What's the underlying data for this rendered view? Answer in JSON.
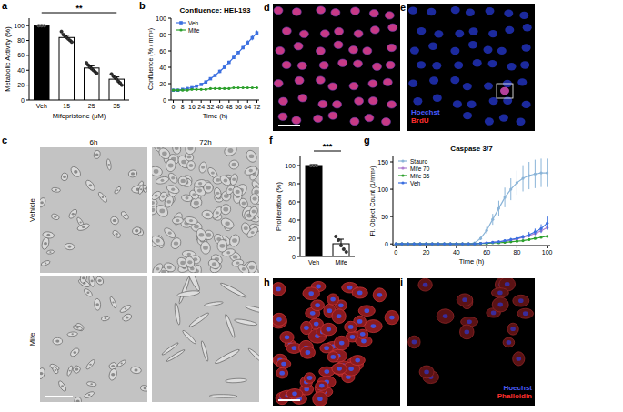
{
  "panel_labels": [
    "a",
    "b",
    "c",
    "d",
    "e",
    "f",
    "g",
    "h",
    "i"
  ],
  "chart_data": [
    {
      "type": "bar",
      "categories": [
        "Veh",
        "15",
        "25",
        "35"
      ],
      "values": [
        100,
        84,
        43,
        28
      ],
      "errors": [
        1,
        3,
        3,
        3
      ],
      "points": [
        [
          100,
          100,
          100
        ],
        [
          92,
          88,
          86,
          84,
          82,
          80,
          78
        ],
        [
          50,
          47,
          44,
          42,
          40,
          38,
          36
        ],
        [
          35,
          32,
          30,
          28,
          25,
          23,
          20
        ]
      ],
      "colors": [
        "#000000",
        "#ffffff",
        "#ffffff",
        "#ffffff"
      ],
      "ylim": [
        0,
        110
      ],
      "yticks": [
        0,
        20,
        40,
        60,
        80,
        100
      ],
      "y_label": "Metabolic Activity (%)",
      "x_label": "Mifepristone (μM)",
      "annotations": [
        "**"
      ]
    },
    {
      "type": "line",
      "title": "Confluence: HEI-193",
      "x": [
        0,
        4,
        8,
        12,
        16,
        20,
        24,
        28,
        32,
        36,
        40,
        44,
        48,
        52,
        56,
        60,
        64,
        68,
        72
      ],
      "series": [
        {
          "name": "Veh",
          "color": "#3b6fe0",
          "marker": "square",
          "values": [
            12,
            12,
            13,
            14,
            15,
            17,
            19,
            22,
            26,
            30,
            35,
            40,
            46,
            52,
            58,
            64,
            70,
            76,
            82
          ],
          "errors": [
            0,
            0,
            0,
            0,
            0,
            1,
            1,
            1,
            1,
            1,
            2,
            2,
            2,
            2,
            2,
            2,
            3,
            3,
            3
          ]
        },
        {
          "name": "Mife",
          "color": "#2ca02c",
          "marker": "circle",
          "values": [
            12,
            12,
            12,
            12,
            13,
            13,
            13,
            13,
            14,
            14,
            14,
            14,
            14,
            15,
            15,
            15,
            15,
            15,
            15
          ]
        }
      ],
      "xlim": [
        -2,
        74
      ],
      "xticks": [
        0,
        8,
        16,
        24,
        32,
        40,
        48,
        56,
        64,
        72
      ],
      "ylim": [
        0,
        100
      ],
      "yticks": [
        0,
        20,
        40,
        60,
        80,
        100
      ],
      "x_label": "Time (h)",
      "y_label": "Confluence (% / mm²)",
      "legend": "top-left"
    },
    {
      "type": "bar",
      "categories": [
        "Veh",
        "Mife"
      ],
      "values": [
        100,
        14
      ],
      "errors": [
        1,
        5
      ],
      "points": [
        [
          100,
          100,
          100
        ],
        [
          22,
          18,
          12,
          8,
          5
        ]
      ],
      "colors": [
        "#000000",
        "#ffffff"
      ],
      "ylim": [
        0,
        110
      ],
      "yticks": [
        0,
        20,
        40,
        60,
        80,
        100
      ],
      "y_label": "Proliferation (%)",
      "annotations": [
        "***"
      ]
    },
    {
      "type": "line",
      "title": "Caspase 3/7",
      "x": [
        0,
        4,
        8,
        12,
        16,
        20,
        24,
        28,
        32,
        36,
        40,
        44,
        48,
        52,
        56,
        60,
        64,
        68,
        72,
        76,
        80,
        84,
        88,
        92,
        96,
        100
      ],
      "series": [
        {
          "name": "Stauro",
          "color": "#8ab4d8",
          "marker": "circle",
          "values": [
            0,
            0,
            0,
            0,
            0,
            0,
            0,
            0,
            0,
            0,
            0,
            0,
            0,
            2,
            10,
            25,
            45,
            65,
            85,
            100,
            112,
            120,
            125,
            128,
            130,
            130
          ],
          "errors": [
            0,
            0,
            0,
            0,
            0,
            0,
            0,
            0,
            0,
            0,
            0,
            0,
            0,
            1,
            3,
            6,
            10,
            14,
            18,
            20,
            22,
            24,
            25,
            26,
            26,
            26
          ]
        },
        {
          "name": "Mife 70",
          "color": "#b07fd0",
          "marker": "circle",
          "values": [
            0,
            0,
            0,
            0,
            0,
            0,
            0,
            0,
            0,
            0,
            0,
            0,
            0,
            0,
            1,
            2,
            3,
            4,
            5,
            7,
            9,
            12,
            15,
            19,
            24,
            30
          ]
        },
        {
          "name": "Mife 35",
          "color": "#2ca02c",
          "marker": "circle",
          "values": [
            0,
            0,
            0,
            0,
            0,
            0,
            0,
            0,
            0,
            0,
            0,
            0,
            0,
            0,
            1,
            1,
            2,
            2,
            3,
            4,
            5,
            6,
            8,
            10,
            12,
            14
          ]
        },
        {
          "name": "Veh",
          "color": "#3b6fe0",
          "marker": "circle",
          "values": [
            0,
            0,
            0,
            0,
            0,
            0,
            0,
            0,
            0,
            0,
            0,
            0,
            0,
            0,
            1,
            2,
            3,
            4,
            6,
            8,
            10,
            13,
            17,
            22,
            28,
            38
          ],
          "errors": [
            0,
            0,
            0,
            0,
            0,
            0,
            0,
            0,
            0,
            0,
            0,
            0,
            0,
            0,
            1,
            1,
            1,
            2,
            2,
            3,
            3,
            4,
            5,
            6,
            8,
            12
          ]
        }
      ],
      "xlim": [
        -2,
        102
      ],
      "xticks": [
        0,
        20,
        40,
        60,
        80,
        100
      ],
      "ylim": [
        -3,
        160
      ],
      "yticks": [
        0,
        50,
        100,
        150
      ],
      "x_label": "Time (h)",
      "y_label": "Fl. Object Count (1/mm²)",
      "legend": "top-left"
    }
  ],
  "micrographs": {
    "columns": [
      "6h",
      "72h"
    ],
    "rows": [
      "Vehicle",
      "Mife"
    ]
  },
  "stain_legends": [
    {
      "labels": [
        "Hoechst",
        "BrdU"
      ],
      "colors": [
        "#4a5cff",
        "#ff3030"
      ]
    },
    {
      "labels": [
        "Hoechst",
        "Phalloidin"
      ],
      "colors": [
        "#4a5cff",
        "#ff3030"
      ]
    }
  ]
}
